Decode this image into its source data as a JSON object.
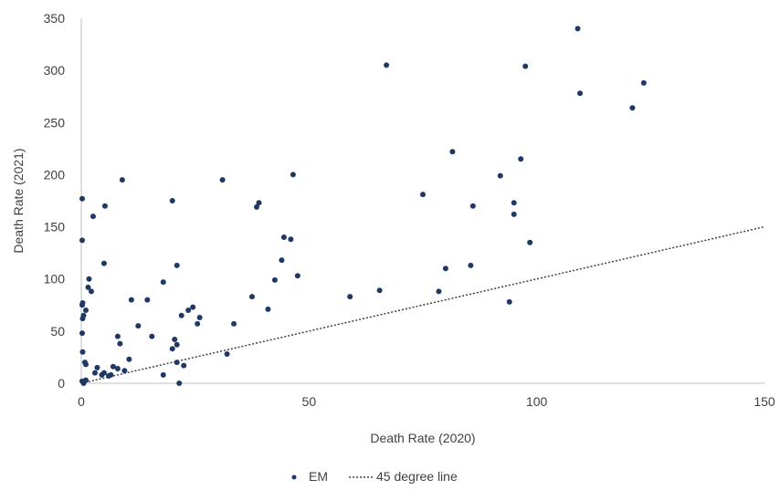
{
  "chart_data": {
    "type": "scatter",
    "title": "",
    "xlabel": "Death Rate (2020)",
    "ylabel": "Death Rate (2021)",
    "xlim": [
      0,
      150
    ],
    "ylim": [
      0,
      350
    ],
    "x_ticks": [
      "0",
      "50",
      "100",
      "150"
    ],
    "y_ticks": [
      "0",
      "50",
      "100",
      "150",
      "200",
      "250",
      "300",
      "350"
    ],
    "grid": false,
    "legend_position": "bottom",
    "series": [
      {
        "name": "EM",
        "color": "#1f3864",
        "points": [
          [
            0.2,
            177
          ],
          [
            0.2,
            137
          ],
          [
            0.3,
            77
          ],
          [
            0.2,
            75
          ],
          [
            0.5,
            65
          ],
          [
            0.3,
            62
          ],
          [
            1.0,
            70
          ],
          [
            0.2,
            48
          ],
          [
            0.3,
            30
          ],
          [
            0.8,
            20
          ],
          [
            1.0,
            18
          ],
          [
            0.2,
            2
          ],
          [
            0.5,
            0
          ],
          [
            1.0,
            3
          ],
          [
            1.5,
            92
          ],
          [
            1.7,
            100
          ],
          [
            2.2,
            88
          ],
          [
            2.6,
            160
          ],
          [
            3.0,
            10
          ],
          [
            3.5,
            15
          ],
          [
            4.5,
            8
          ],
          [
            5.0,
            10
          ],
          [
            5.0,
            115
          ],
          [
            5.2,
            170
          ],
          [
            6.0,
            7
          ],
          [
            6.5,
            8
          ],
          [
            7.0,
            16
          ],
          [
            8.0,
            14
          ],
          [
            8.0,
            45
          ],
          [
            8.5,
            38
          ],
          [
            9.0,
            195
          ],
          [
            9.5,
            12
          ],
          [
            10.5,
            23
          ],
          [
            11,
            80
          ],
          [
            12.5,
            55
          ],
          [
            14.5,
            80
          ],
          [
            15.5,
            45
          ],
          [
            18.0,
            97
          ],
          [
            18.0,
            8
          ],
          [
            20.0,
            175
          ],
          [
            20.0,
            33
          ],
          [
            20.5,
            42
          ],
          [
            21.0,
            113
          ],
          [
            21.0,
            37
          ],
          [
            21.0,
            20
          ],
          [
            21.5,
            0
          ],
          [
            22.0,
            65
          ],
          [
            22.5,
            17
          ],
          [
            23.5,
            70
          ],
          [
            24.5,
            73
          ],
          [
            25.5,
            57
          ],
          [
            26.0,
            63
          ],
          [
            31.0,
            195
          ],
          [
            32.0,
            28
          ],
          [
            33.5,
            57
          ],
          [
            37.5,
            83
          ],
          [
            38.5,
            169
          ],
          [
            39.0,
            173
          ],
          [
            41.0,
            71
          ],
          [
            42.5,
            99
          ],
          [
            44.0,
            118
          ],
          [
            44.5,
            140
          ],
          [
            46.0,
            138
          ],
          [
            46.5,
            200
          ],
          [
            47.5,
            103
          ],
          [
            59.0,
            83
          ],
          [
            65.5,
            89
          ],
          [
            67.0,
            305
          ],
          [
            75.0,
            181
          ],
          [
            78.5,
            88
          ],
          [
            80.0,
            110
          ],
          [
            81.5,
            222
          ],
          [
            85.5,
            113
          ],
          [
            86.0,
            170
          ],
          [
            92.0,
            199
          ],
          [
            94.0,
            78
          ],
          [
            95.0,
            173
          ],
          [
            95.0,
            162
          ],
          [
            96.5,
            215
          ],
          [
            97.5,
            304
          ],
          [
            98.5,
            135
          ],
          [
            109,
            340
          ],
          [
            109.5,
            278
          ],
          [
            121,
            264
          ],
          [
            123.5,
            288
          ]
        ]
      },
      {
        "name": "45 degree line",
        "color": "#404040",
        "line": [
          [
            0,
            0
          ],
          [
            150,
            150
          ]
        ]
      }
    ]
  }
}
